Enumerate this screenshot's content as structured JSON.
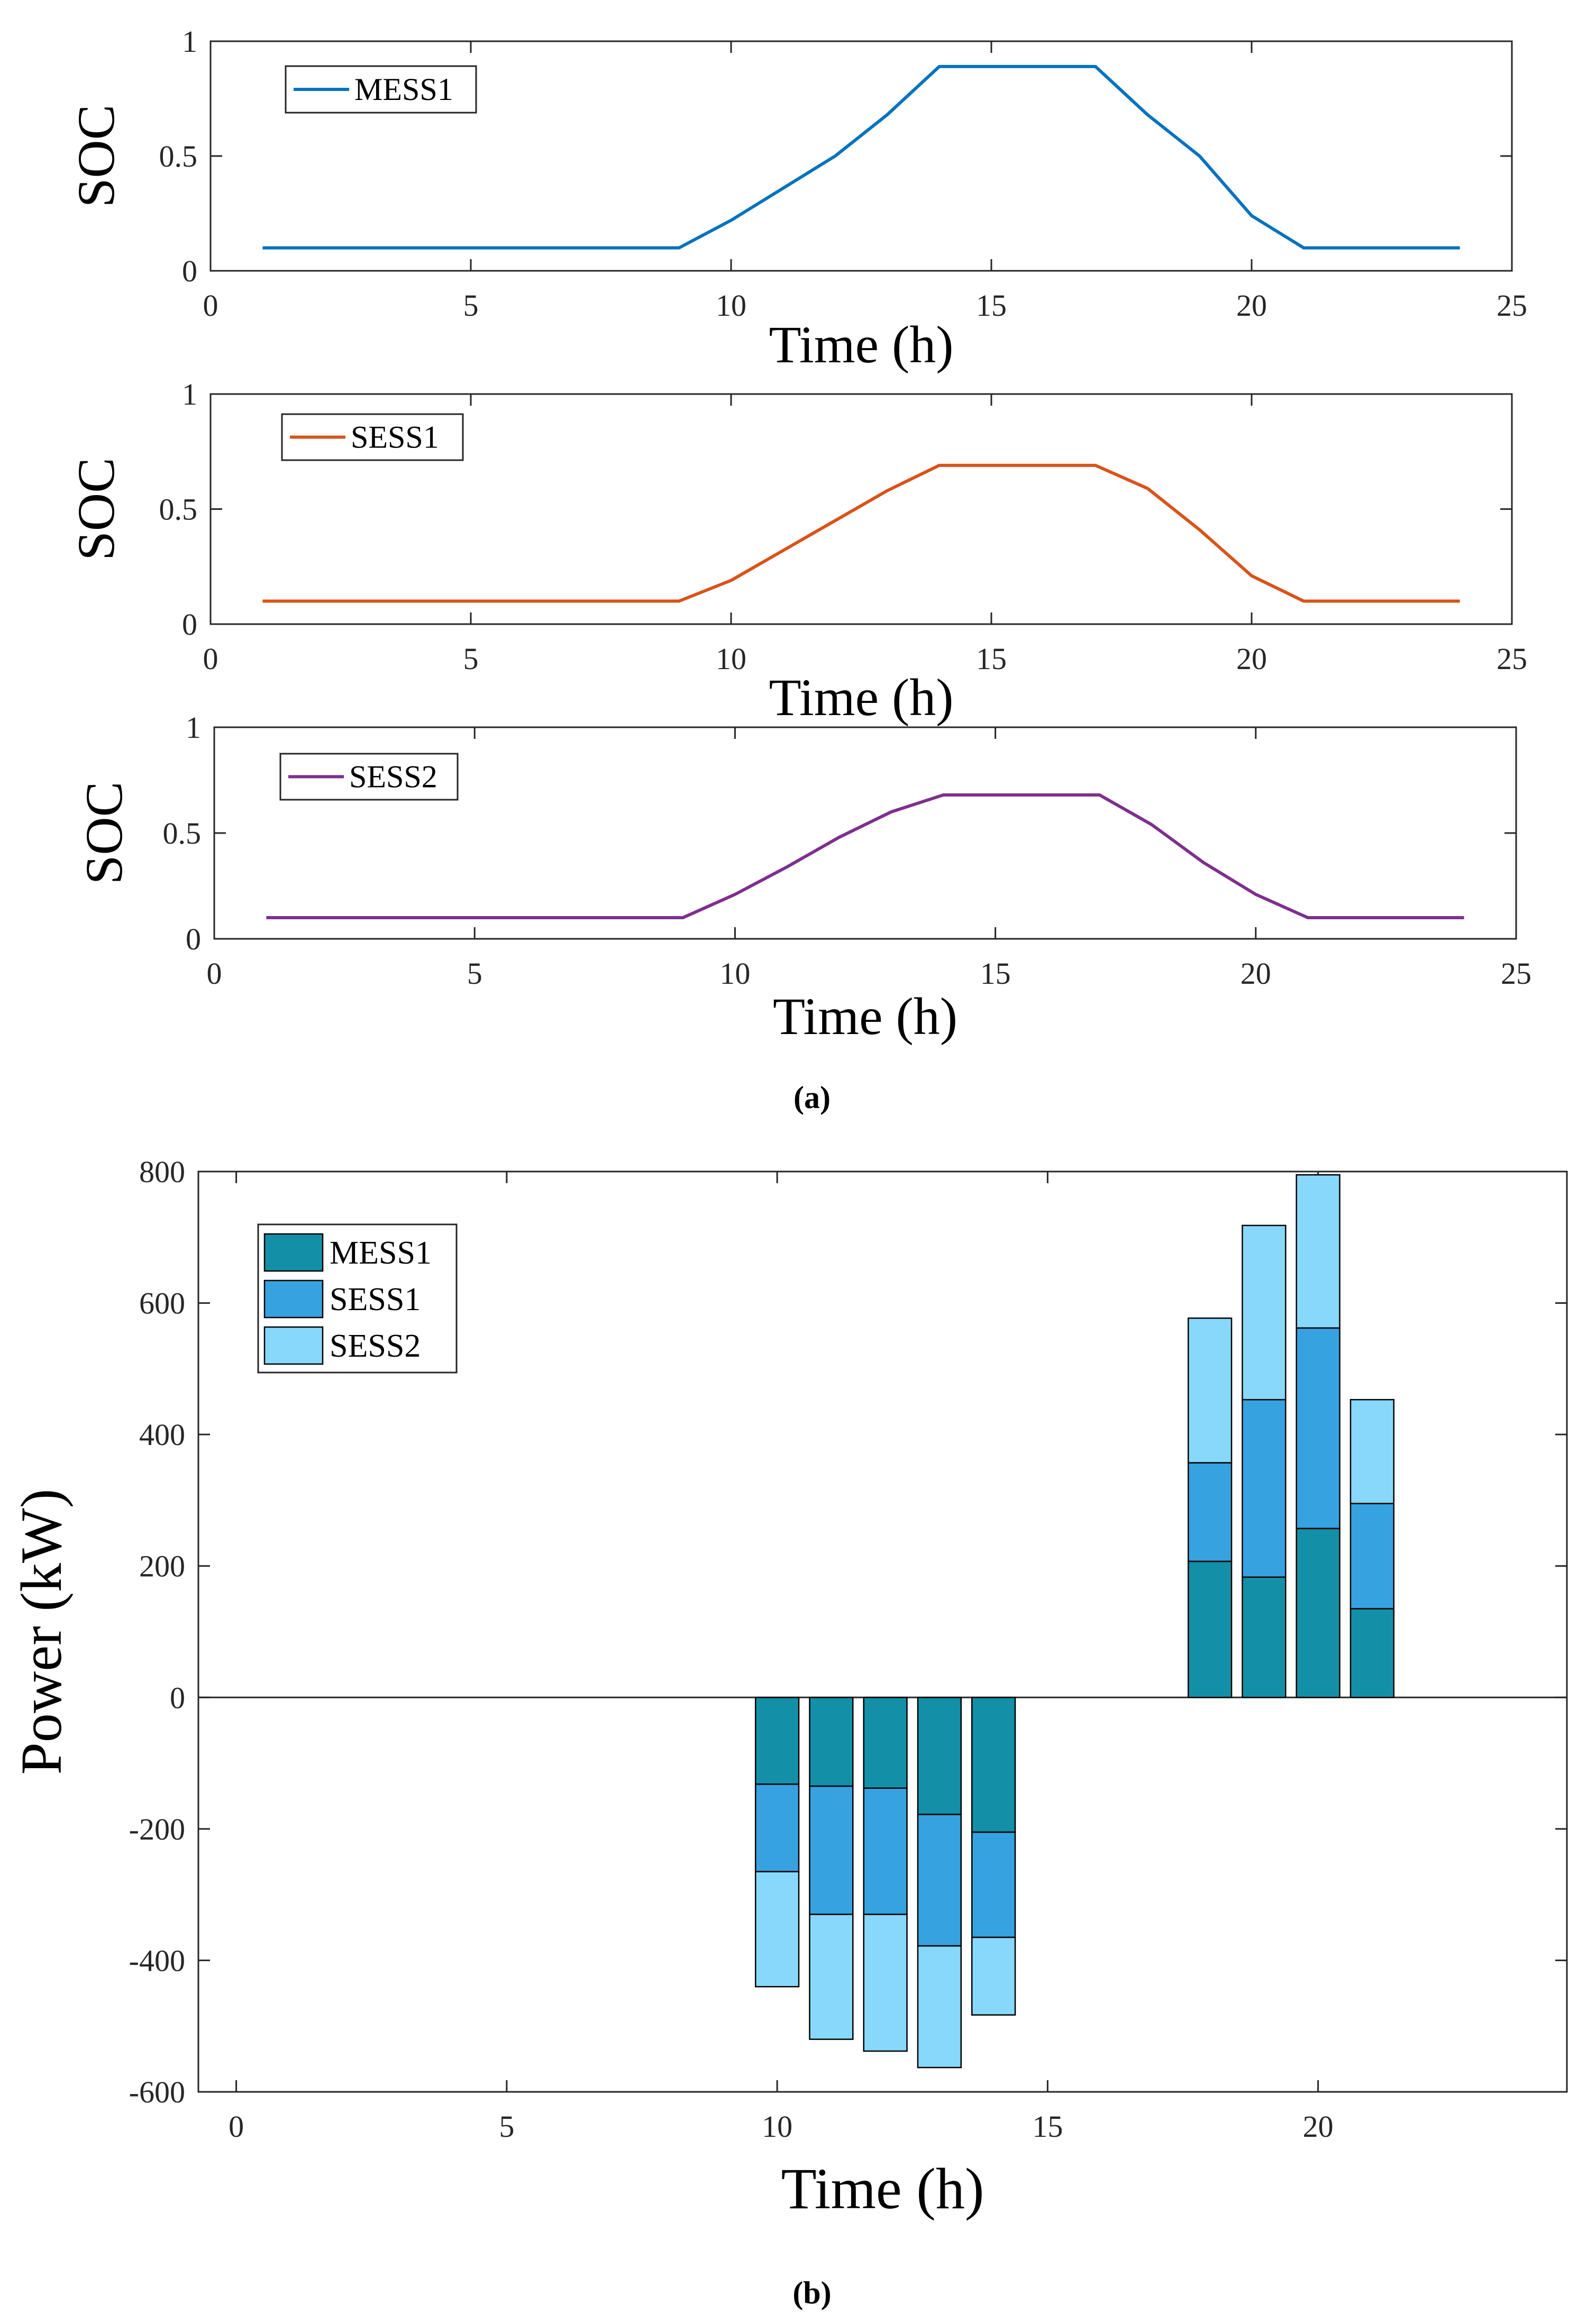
{
  "figure": {
    "caption_a": "(a)",
    "caption_b": "(b)"
  },
  "chart_data": [
    {
      "type": "line",
      "title": "",
      "xlabel": "Time (h)",
      "ylabel": "SOC",
      "xlim": [
        0,
        25
      ],
      "ylim": [
        0,
        1
      ],
      "xticks": [
        0,
        5,
        10,
        15,
        20,
        25
      ],
      "yticks": [
        0,
        0.5,
        1
      ],
      "legend_position": "top-left",
      "series": [
        {
          "name": "MESS1",
          "color": "#0072BD",
          "x": [
            1,
            2,
            3,
            4,
            5,
            6,
            7,
            8,
            9,
            10,
            11,
            12,
            13,
            14,
            15,
            16,
            17,
            18,
            19,
            20,
            21,
            22,
            23,
            24
          ],
          "values": [
            0.1,
            0.1,
            0.1,
            0.1,
            0.1,
            0.1,
            0.1,
            0.1,
            0.1,
            0.22,
            0.36,
            0.5,
            0.68,
            0.89,
            0.89,
            0.89,
            0.89,
            0.68,
            0.5,
            0.24,
            0.1,
            0.1,
            0.1,
            0.1
          ]
        }
      ]
    },
    {
      "type": "line",
      "title": "",
      "xlabel": "Time (h)",
      "ylabel": "SOC",
      "xlim": [
        0,
        25
      ],
      "ylim": [
        0,
        1
      ],
      "xticks": [
        0,
        5,
        10,
        15,
        20,
        25
      ],
      "yticks": [
        0,
        0.5,
        1
      ],
      "legend_position": "top-left",
      "series": [
        {
          "name": "SESS1",
          "color": "#D95319",
          "x": [
            1,
            2,
            3,
            4,
            5,
            6,
            7,
            8,
            9,
            10,
            11,
            12,
            13,
            14,
            15,
            16,
            17,
            18,
            19,
            20,
            21,
            22,
            23,
            24
          ],
          "values": [
            0.1,
            0.1,
            0.1,
            0.1,
            0.1,
            0.1,
            0.1,
            0.1,
            0.1,
            0.19,
            0.32,
            0.45,
            0.58,
            0.69,
            0.69,
            0.69,
            0.69,
            0.59,
            0.41,
            0.21,
            0.1,
            0.1,
            0.1,
            0.1
          ]
        }
      ]
    },
    {
      "type": "line",
      "title": "",
      "xlabel": "Time (h)",
      "ylabel": "SOC",
      "xlim": [
        0,
        25
      ],
      "ylim": [
        0,
        1
      ],
      "xticks": [
        0,
        5,
        10,
        15,
        20,
        25
      ],
      "yticks": [
        0,
        0.5,
        1
      ],
      "legend_position": "top-left",
      "series": [
        {
          "name": "SESS2",
          "color": "#7E2F8E",
          "x": [
            1,
            2,
            3,
            4,
            5,
            6,
            7,
            8,
            9,
            10,
            11,
            12,
            13,
            14,
            15,
            16,
            17,
            18,
            19,
            20,
            21,
            22,
            23,
            24
          ],
          "values": [
            0.1,
            0.1,
            0.1,
            0.1,
            0.1,
            0.1,
            0.1,
            0.1,
            0.1,
            0.21,
            0.34,
            0.48,
            0.6,
            0.68,
            0.68,
            0.68,
            0.68,
            0.54,
            0.36,
            0.21,
            0.1,
            0.1,
            0.1,
            0.1
          ]
        }
      ]
    },
    {
      "type": "bar",
      "stacked": true,
      "title": "",
      "xlabel": "Time (h)",
      "ylabel": "Power (kW)",
      "xlim": [
        -0.7,
        24.6
      ],
      "ylim": [
        -600,
        800
      ],
      "xticks": [
        0,
        5,
        10,
        15,
        20
      ],
      "yticks": [
        -600,
        -400,
        -200,
        0,
        200,
        400,
        600,
        800
      ],
      "legend_position": "top-left",
      "categories": [
        10,
        11,
        12,
        13,
        14,
        18,
        19,
        20,
        21
      ],
      "series": [
        {
          "name": "MESS1",
          "color": "#1390A8",
          "values": [
            -132,
            -135,
            -138,
            -178,
            -205,
            207,
            183,
            257,
            135
          ]
        },
        {
          "name": "SESS1",
          "color": "#36A2E0",
          "values": [
            -133,
            -195,
            -192,
            -200,
            -160,
            150,
            270,
            305,
            160
          ]
        },
        {
          "name": "SESS2",
          "color": "#87D8FB",
          "values": [
            -175,
            -190,
            -208,
            -185,
            -118,
            220,
            265,
            233,
            158
          ]
        }
      ]
    }
  ]
}
